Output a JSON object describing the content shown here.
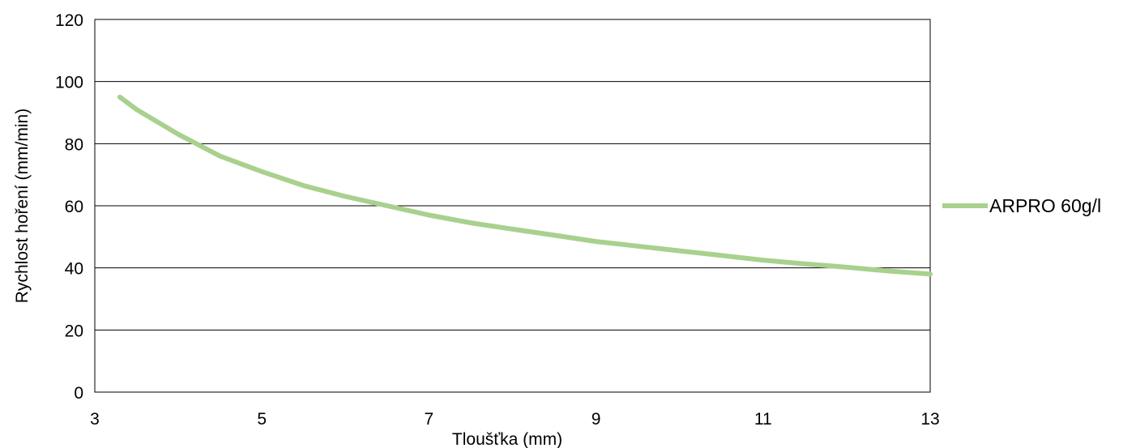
{
  "chart_data": {
    "type": "line",
    "title": "",
    "xlabel": "Tloušťka (mm)",
    "ylabel": "Rychlost hoření (mm/min)",
    "xlim": [
      3,
      13
    ],
    "ylim": [
      0,
      120
    ],
    "xticks": [
      3,
      5,
      7,
      9,
      11,
      13
    ],
    "yticks": [
      0,
      20,
      40,
      60,
      80,
      100,
      120
    ],
    "grid": "horizontal",
    "legend_position": "right",
    "series": [
      {
        "name": "ARPRO 60g/l",
        "color": "#a9d18e",
        "points": [
          [
            3.3,
            95
          ],
          [
            3.5,
            91
          ],
          [
            4.0,
            83
          ],
          [
            4.5,
            76
          ],
          [
            5.0,
            71
          ],
          [
            5.5,
            66.5
          ],
          [
            6.0,
            63
          ],
          [
            6.5,
            60
          ],
          [
            7.0,
            57
          ],
          [
            7.5,
            54.5
          ],
          [
            8.0,
            52.5
          ],
          [
            8.5,
            50.5
          ],
          [
            9.0,
            48.5
          ],
          [
            9.5,
            47
          ],
          [
            10.0,
            45.5
          ],
          [
            10.5,
            44
          ],
          [
            11.0,
            42.5
          ],
          [
            11.5,
            41.3
          ],
          [
            12.0,
            40.2
          ],
          [
            12.5,
            39
          ],
          [
            13.0,
            38
          ]
        ]
      }
    ]
  }
}
